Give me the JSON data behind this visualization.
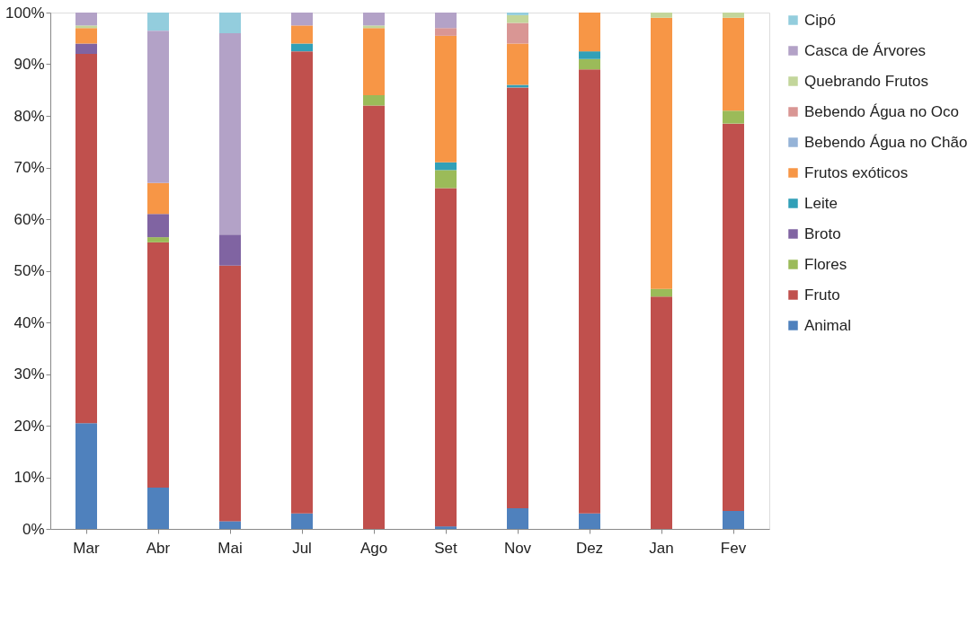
{
  "chart_data": {
    "type": "bar",
    "stacked": true,
    "categories": [
      "Mar",
      "Abr",
      "Mai",
      "Jul",
      "Ago",
      "Set",
      "Nov",
      "Dez",
      "Jan",
      "Fev"
    ],
    "ylim": [
      0,
      100
    ],
    "yticks": [
      {
        "value": 0,
        "label": "0%"
      },
      {
        "value": 10,
        "label": "10%"
      },
      {
        "value": 20,
        "label": "20%"
      },
      {
        "value": 30,
        "label": "30%"
      },
      {
        "value": 40,
        "label": "40%"
      },
      {
        "value": 50,
        "label": "50%"
      },
      {
        "value": 60,
        "label": "60%"
      },
      {
        "value": 70,
        "label": "70%"
      },
      {
        "value": 80,
        "label": "80%"
      },
      {
        "value": 90,
        "label": "90%"
      },
      {
        "value": 100,
        "label": "100%"
      }
    ],
    "grid": false,
    "legend": "right",
    "series": [
      {
        "name": "Animal",
        "color": "#4f81bd",
        "values": [
          20.5,
          8,
          1.5,
          3,
          null,
          0.5,
          4,
          3,
          null,
          3.5
        ]
      },
      {
        "name": "Fruto",
        "color": "#c0504d",
        "values": [
          71.5,
          47.5,
          49.5,
          89.5,
          82,
          65.5,
          81.5,
          86,
          45,
          75
        ]
      },
      {
        "name": "Flores",
        "color": "#9bbb59",
        "values": [
          null,
          1,
          null,
          null,
          2,
          3.5,
          null,
          2,
          1.5,
          2.5
        ]
      },
      {
        "name": "Broto",
        "color": "#8064a2",
        "values": [
          2,
          4.5,
          6,
          null,
          null,
          null,
          null,
          null,
          null,
          null
        ]
      },
      {
        "name": "Leite",
        "color": "#31a0b8",
        "values": [
          null,
          null,
          null,
          1.5,
          null,
          1.5,
          0.5,
          1.5,
          null,
          null
        ]
      },
      {
        "name": "Frutos exóticos",
        "color": "#f79646",
        "values": [
          3,
          6,
          null,
          3.5,
          13,
          24.5,
          8,
          7.5,
          52.5,
          18
        ]
      },
      {
        "name": "Bebendo Água no Chão",
        "color": "#95b3d7",
        "values": [
          null,
          null,
          null,
          null,
          null,
          null,
          null,
          null,
          null,
          null
        ]
      },
      {
        "name": "Bebendo Água no Oco",
        "color": "#d99694",
        "values": [
          null,
          null,
          null,
          null,
          null,
          1.5,
          4,
          null,
          null,
          null
        ]
      },
      {
        "name": "Quebrando Frutos",
        "color": "#c3d69b",
        "values": [
          0.5,
          null,
          null,
          null,
          0.5,
          null,
          1.5,
          null,
          1,
          1
        ]
      },
      {
        "name": "Casca de Árvores",
        "color": "#b3a2c7",
        "values": [
          2.5,
          29.5,
          39,
          2.5,
          2.5,
          3,
          null,
          null,
          null,
          null
        ]
      },
      {
        "name": "Cipó",
        "color": "#93cddd",
        "values": [
          null,
          3.5,
          4,
          null,
          null,
          null,
          0.5,
          null,
          null,
          null
        ]
      }
    ]
  }
}
